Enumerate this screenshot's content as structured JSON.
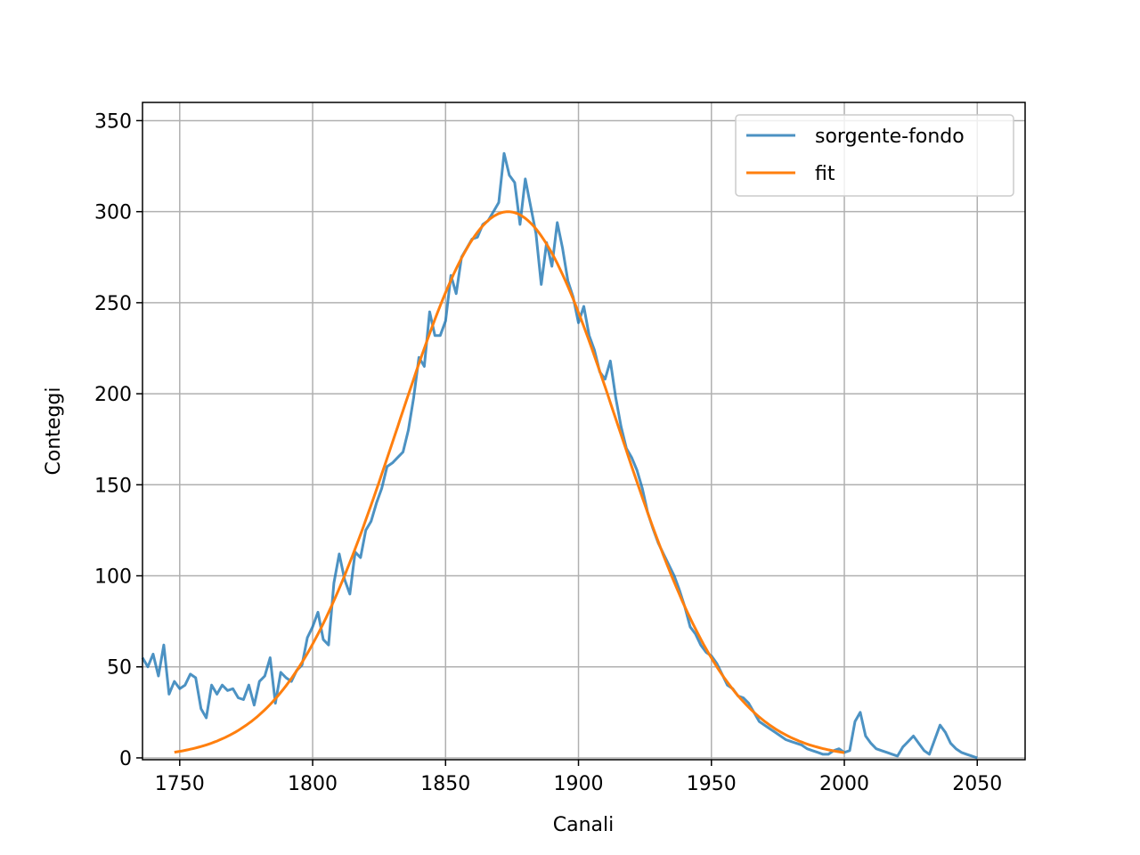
{
  "chart_data": {
    "type": "line",
    "title": "",
    "xlabel": "Canali",
    "ylabel": "Conteggi",
    "xlim": [
      1736,
      2068
    ],
    "ylim": [
      -1,
      360
    ],
    "xticks": [
      1750,
      1800,
      1850,
      1900,
      1950,
      2000,
      2050
    ],
    "yticks": [
      0,
      50,
      100,
      150,
      200,
      250,
      300,
      350
    ],
    "grid": true,
    "legend_position": "top-right",
    "series": [
      {
        "name": "sorgente-fondo",
        "color": "#1f77b4",
        "x": [
          1736,
          1738,
          1740,
          1742,
          1744,
          1746,
          1748,
          1750,
          1752,
          1754,
          1756,
          1758,
          1760,
          1762,
          1764,
          1766,
          1768,
          1770,
          1772,
          1774,
          1776,
          1778,
          1780,
          1782,
          1784,
          1786,
          1788,
          1790,
          1792,
          1794,
          1796,
          1798,
          1800,
          1802,
          1804,
          1806,
          1808,
          1810,
          1812,
          1814,
          1816,
          1818,
          1820,
          1822,
          1824,
          1826,
          1828,
          1830,
          1832,
          1834,
          1836,
          1838,
          1840,
          1842,
          1844,
          1846,
          1848,
          1850,
          1852,
          1854,
          1856,
          1858,
          1860,
          1862,
          1864,
          1866,
          1868,
          1870,
          1872,
          1874,
          1876,
          1878,
          1880,
          1882,
          1884,
          1886,
          1888,
          1890,
          1892,
          1894,
          1896,
          1898,
          1900,
          1902,
          1904,
          1906,
          1908,
          1910,
          1912,
          1914,
          1916,
          1918,
          1920,
          1922,
          1924,
          1926,
          1928,
          1930,
          1932,
          1934,
          1936,
          1938,
          1940,
          1942,
          1944,
          1946,
          1948,
          1950,
          1952,
          1954,
          1956,
          1958,
          1960,
          1962,
          1964,
          1966,
          1968,
          1970,
          1972,
          1974,
          1976,
          1978,
          1980,
          1982,
          1984,
          1986,
          1988,
          1990,
          1992,
          1994,
          1996,
          1998,
          2000,
          2002,
          2004,
          2006,
          2008,
          2010,
          2012,
          2014,
          2016,
          2018,
          2020,
          2022,
          2024,
          2026,
          2028,
          2030,
          2032,
          2034,
          2036,
          2038,
          2040,
          2042,
          2044,
          2046,
          2048,
          2050
        ],
        "y": [
          55,
          50,
          57,
          45,
          62,
          35,
          42,
          38,
          40,
          46,
          44,
          27,
          22,
          40,
          35,
          40,
          37,
          38,
          33,
          32,
          40,
          29,
          42,
          45,
          55,
          30,
          47,
          44,
          42,
          48,
          51,
          66,
          72,
          80,
          65,
          62,
          96,
          112,
          98,
          90,
          113,
          110,
          125,
          130,
          140,
          148,
          160,
          162,
          165,
          168,
          180,
          198,
          220,
          215,
          245,
          232,
          232,
          240,
          265,
          255,
          275,
          280,
          285,
          286,
          293,
          295,
          300,
          305,
          332,
          320,
          316,
          293,
          318,
          303,
          288,
          260,
          283,
          270,
          294,
          280,
          262,
          253,
          239,
          248,
          232,
          224,
          212,
          208,
          218,
          198,
          182,
          170,
          165,
          158,
          148,
          135,
          126,
          118,
          112,
          106,
          100,
          92,
          83,
          72,
          68,
          62,
          58,
          56,
          52,
          46,
          40,
          38,
          34,
          33,
          30,
          25,
          20,
          18,
          16,
          14,
          12,
          10,
          9,
          8,
          7,
          5,
          4,
          3,
          2,
          2,
          4,
          5,
          3,
          4,
          20,
          25,
          12,
          8,
          5,
          4,
          3,
          2,
          1,
          6,
          9,
          12,
          8,
          4,
          2,
          10,
          18,
          14,
          8,
          5,
          3,
          2,
          1,
          0
        ]
      },
      {
        "name": "fit",
        "color": "#ff7f0e",
        "model": "gaussian",
        "amplitude": 300,
        "mean": 1873.5,
        "sigma": 41.5,
        "x_range": [
          1748,
          2000
        ]
      }
    ]
  }
}
